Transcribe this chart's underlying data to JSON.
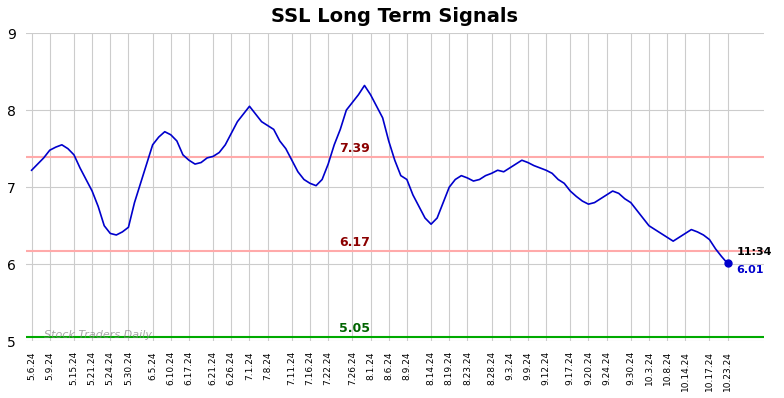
{
  "title": "SSL Long Term Signals",
  "x_labels": [
    "5.6.24",
    "5.9.24",
    "5.15.24",
    "5.21.24",
    "5.24.24",
    "5.30.24",
    "6.5.24",
    "6.10.24",
    "6.17.24",
    "6.21.24",
    "6.26.24",
    "7.1.24",
    "7.8.24",
    "7.11.24",
    "7.16.24",
    "7.22.24",
    "7.26.24",
    "8.1.24",
    "8.6.24",
    "8.9.24",
    "8.14.24",
    "8.19.24",
    "8.23.24",
    "8.28.24",
    "9.3.24",
    "9.9.24",
    "9.12.24",
    "9.17.24",
    "9.20.24",
    "9.24.24",
    "9.30.24",
    "10.3.24",
    "10.8.24",
    "10.14.24",
    "10.17.24",
    "10.23.24"
  ],
  "y_values": [
    7.22,
    7.3,
    7.38,
    7.48,
    7.52,
    7.55,
    7.5,
    7.42,
    7.25,
    7.1,
    6.95,
    6.75,
    6.5,
    6.4,
    6.38,
    6.42,
    6.48,
    6.8,
    7.05,
    7.3,
    7.55,
    7.65,
    7.72,
    7.68,
    7.6,
    7.42,
    7.35,
    7.3,
    7.32,
    7.38,
    7.4,
    7.45,
    7.55,
    7.7,
    7.85,
    7.95,
    8.05,
    7.95,
    7.85,
    7.8,
    7.75,
    7.6,
    7.5,
    7.35,
    7.2,
    7.1,
    7.05,
    7.02,
    7.1,
    7.3,
    7.55,
    7.75,
    8.0,
    8.1,
    8.2,
    8.32,
    8.2,
    8.05,
    7.9,
    7.6,
    7.35,
    7.15,
    7.1,
    6.9,
    6.75,
    6.6,
    6.52,
    6.6,
    6.8,
    7.0,
    7.1,
    7.15,
    7.12,
    7.08,
    7.1,
    7.15,
    7.18,
    7.22,
    7.2,
    7.25,
    7.3,
    7.35,
    7.32,
    7.28,
    7.25,
    7.22,
    7.18,
    7.1,
    7.05,
    6.95,
    6.88,
    6.82,
    6.78,
    6.8,
    6.85,
    6.9,
    6.95,
    6.92,
    6.85,
    6.8,
    6.7,
    6.6,
    6.5,
    6.45,
    6.4,
    6.35,
    6.3,
    6.35,
    6.4,
    6.45,
    6.42,
    6.38,
    6.32,
    6.2,
    6.1,
    6.01
  ],
  "hline1_value": 7.39,
  "hline1_label": "7.39",
  "hline2_value": 6.17,
  "hline2_label": "6.17",
  "hline3_value": 5.05,
  "hline3_label": "5.05",
  "last_time": "11:34",
  "last_price": 6.01,
  "last_price_label": "6.01",
  "watermark": "Stock Traders Daily",
  "line_color": "#0000cc",
  "hline_color": "#ffaaaa",
  "hline3_color": "#00aa00",
  "ylim_min": 5.0,
  "ylim_max": 9.0,
  "yticks": [
    5,
    6,
    7,
    8,
    9
  ],
  "background_color": "#ffffff",
  "grid_color": "#cccccc"
}
